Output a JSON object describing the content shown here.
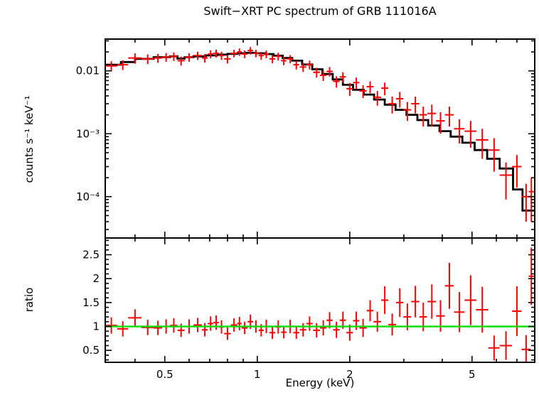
{
  "title": "Swift−XRT PC spectrum of GRB 111016A",
  "axes": {
    "top_ylabel": "counts s⁻¹ keV⁻¹",
    "bottom_ylabel": "ratio",
    "xlabel": "Energy (keV)"
  },
  "chart_data": {
    "type": "scatter",
    "title": "Swift−XRT PC spectrum of GRB 111016A",
    "xlabel": "Energy (keV)",
    "x_scale": "log",
    "x_range": [
      0.32,
      8.0
    ],
    "x_ticks": {
      "major": [
        {
          "v": 0.5,
          "label": "0.5"
        },
        {
          "v": 1,
          "label": "1"
        },
        {
          "v": 2,
          "label": "2"
        },
        {
          "v": 5,
          "label": "5"
        }
      ],
      "minor": [
        0.4,
        0.6,
        0.7,
        0.8,
        0.9,
        3,
        4,
        6,
        7
      ]
    },
    "colors": {
      "data": "#ff0000",
      "model": "#000000",
      "ratio_line": "#00dd00",
      "frame": "#000000"
    },
    "top": {
      "ylabel": "counts s⁻¹ keV⁻¹",
      "y_scale": "log",
      "y_range": [
        2.2e-05,
        0.032
      ],
      "y_ticks": {
        "major": [
          {
            "v": 0.01,
            "label": "0.01"
          },
          {
            "v": 0.001,
            "label": "10⁻³"
          },
          {
            "v": 0.0001,
            "label": "10⁻⁴"
          }
        ]
      },
      "points": [
        [
          0.335,
          0.015,
          0.012,
          0.0022
        ],
        [
          0.365,
          0.015,
          0.0125,
          0.0022
        ],
        [
          0.4,
          0.02,
          0.016,
          0.003
        ],
        [
          0.44,
          0.02,
          0.0155,
          0.0027
        ],
        [
          0.475,
          0.015,
          0.016,
          0.0026
        ],
        [
          0.505,
          0.015,
          0.0165,
          0.0026
        ],
        [
          0.535,
          0.015,
          0.017,
          0.0026
        ],
        [
          0.565,
          0.015,
          0.0145,
          0.0024
        ],
        [
          0.6,
          0.02,
          0.0165,
          0.0025
        ],
        [
          0.64,
          0.02,
          0.0175,
          0.0026
        ],
        [
          0.675,
          0.015,
          0.016,
          0.0025
        ],
        [
          0.705,
          0.015,
          0.0185,
          0.0027
        ],
        [
          0.735,
          0.015,
          0.019,
          0.0027
        ],
        [
          0.765,
          0.015,
          0.0175,
          0.0026
        ],
        [
          0.8,
          0.02,
          0.0155,
          0.0024
        ],
        [
          0.84,
          0.02,
          0.019,
          0.0026
        ],
        [
          0.875,
          0.015,
          0.02,
          0.0027
        ],
        [
          0.91,
          0.02,
          0.0185,
          0.0026
        ],
        [
          0.95,
          0.02,
          0.021,
          0.0028
        ],
        [
          0.99,
          0.02,
          0.019,
          0.0026
        ],
        [
          1.03,
          0.02,
          0.0175,
          0.0025
        ],
        [
          1.07,
          0.02,
          0.0185,
          0.0026
        ],
        [
          1.12,
          0.025,
          0.0155,
          0.0023
        ],
        [
          1.17,
          0.025,
          0.017,
          0.0024
        ],
        [
          1.22,
          0.025,
          0.0145,
          0.0022
        ],
        [
          1.28,
          0.03,
          0.0155,
          0.0023
        ],
        [
          1.34,
          0.03,
          0.0125,
          0.002
        ],
        [
          1.41,
          0.035,
          0.0115,
          0.0019
        ],
        [
          1.48,
          0.035,
          0.0125,
          0.002
        ],
        [
          1.56,
          0.04,
          0.0095,
          0.0017
        ],
        [
          1.64,
          0.04,
          0.0085,
          0.0016
        ],
        [
          1.72,
          0.04,
          0.0098,
          0.0017
        ],
        [
          1.81,
          0.045,
          0.0068,
          0.0014
        ],
        [
          1.9,
          0.045,
          0.008,
          0.0015
        ],
        [
          2.0,
          0.05,
          0.0052,
          0.0012
        ],
        [
          2.1,
          0.05,
          0.0065,
          0.0013
        ],
        [
          2.21,
          0.06,
          0.0048,
          0.0011
        ],
        [
          2.33,
          0.06,
          0.0056,
          0.0012
        ],
        [
          2.46,
          0.07,
          0.0038,
          0.001
        ],
        [
          2.6,
          0.07,
          0.0053,
          0.0012
        ],
        [
          2.75,
          0.08,
          0.003,
          0.0009
        ],
        [
          2.91,
          0.08,
          0.0036,
          0.001
        ],
        [
          3.08,
          0.09,
          0.0024,
          0.0008
        ],
        [
          3.27,
          0.1,
          0.003,
          0.0009
        ],
        [
          3.47,
          0.1,
          0.002,
          0.0007
        ],
        [
          3.7,
          0.12,
          0.0021,
          0.0008
        ],
        [
          3.95,
          0.13,
          0.0016,
          0.0006
        ],
        [
          4.22,
          0.14,
          0.002,
          0.0007
        ],
        [
          4.55,
          0.18,
          0.0012,
          0.0005
        ],
        [
          4.95,
          0.22,
          0.0011,
          0.0005
        ],
        [
          5.4,
          0.25,
          0.0008,
          0.0004
        ],
        [
          5.9,
          0.25,
          0.00055,
          0.0003
        ],
        [
          6.45,
          0.3,
          0.00022,
          0.00013
        ],
        [
          7.0,
          0.25,
          0.0003,
          0.00016
        ],
        [
          7.5,
          0.25,
          0.0001,
          6e-05
        ],
        [
          7.8,
          0.15,
          0.00012,
          8e-05
        ]
      ],
      "model_steps": [
        [
          0.32,
          0.36,
          0.0125
        ],
        [
          0.36,
          0.4,
          0.0138
        ],
        [
          0.4,
          0.46,
          0.0155
        ],
        [
          0.46,
          0.52,
          0.0165
        ],
        [
          0.52,
          0.55,
          0.017
        ],
        [
          0.55,
          0.58,
          0.0157
        ],
        [
          0.58,
          0.62,
          0.0165
        ],
        [
          0.62,
          0.68,
          0.017
        ],
        [
          0.68,
          0.74,
          0.0176
        ],
        [
          0.74,
          0.8,
          0.0181
        ],
        [
          0.8,
          0.86,
          0.0186
        ],
        [
          0.86,
          0.92,
          0.019
        ],
        [
          0.92,
          0.99,
          0.0193
        ],
        [
          0.99,
          1.06,
          0.019
        ],
        [
          1.06,
          1.13,
          0.0185
        ],
        [
          1.13,
          1.21,
          0.0174
        ],
        [
          1.21,
          1.3,
          0.016
        ],
        [
          1.3,
          1.4,
          0.0145
        ],
        [
          1.4,
          1.51,
          0.0126
        ],
        [
          1.51,
          1.63,
          0.0106
        ],
        [
          1.63,
          1.76,
          0.0089
        ],
        [
          1.76,
          1.9,
          0.0073
        ],
        [
          1.9,
          2.05,
          0.006
        ],
        [
          2.05,
          2.22,
          0.005
        ],
        [
          2.22,
          2.4,
          0.0042
        ],
        [
          2.4,
          2.6,
          0.0035
        ],
        [
          2.6,
          2.82,
          0.0029
        ],
        [
          2.82,
          3.06,
          0.0024
        ],
        [
          3.06,
          3.32,
          0.002
        ],
        [
          3.32,
          3.6,
          0.00165
        ],
        [
          3.6,
          3.92,
          0.00135
        ],
        [
          3.92,
          4.26,
          0.0011
        ],
        [
          4.26,
          4.65,
          0.0009
        ],
        [
          4.65,
          5.1,
          0.00072
        ],
        [
          5.1,
          5.6,
          0.00055
        ],
        [
          5.6,
          6.15,
          0.0004
        ],
        [
          6.15,
          6.8,
          0.00028
        ],
        [
          6.8,
          7.3,
          0.00013
        ],
        [
          7.3,
          8.0,
          6e-05
        ]
      ]
    },
    "bottom": {
      "ylabel": "ratio",
      "y_scale": "linear",
      "y_range": [
        0.25,
        2.85
      ],
      "reference_line": 1.0,
      "y_ticks": {
        "major": [
          {
            "v": 0.5,
            "label": "0.5"
          },
          {
            "v": 1,
            "label": "1"
          },
          {
            "v": 1.5,
            "label": "1.5"
          },
          {
            "v": 2,
            "label": "2"
          },
          {
            "v": 2.5,
            "label": "2.5"
          }
        ]
      },
      "points": [
        [
          0.335,
          0.015,
          1.02,
          0.17
        ],
        [
          0.365,
          0.015,
          0.95,
          0.16
        ],
        [
          0.4,
          0.02,
          1.18,
          0.18
        ],
        [
          0.44,
          0.02,
          0.98,
          0.16
        ],
        [
          0.475,
          0.015,
          0.97,
          0.15
        ],
        [
          0.505,
          0.015,
          1.0,
          0.15
        ],
        [
          0.535,
          0.015,
          1.02,
          0.15
        ],
        [
          0.565,
          0.015,
          0.92,
          0.14
        ],
        [
          0.6,
          0.02,
          1.0,
          0.15
        ],
        [
          0.64,
          0.02,
          1.03,
          0.15
        ],
        [
          0.675,
          0.015,
          0.93,
          0.14
        ],
        [
          0.705,
          0.015,
          1.06,
          0.15
        ],
        [
          0.735,
          0.015,
          1.08,
          0.15
        ],
        [
          0.765,
          0.015,
          0.99,
          0.14
        ],
        [
          0.8,
          0.02,
          0.85,
          0.13
        ],
        [
          0.84,
          0.02,
          1.03,
          0.14
        ],
        [
          0.875,
          0.015,
          1.06,
          0.14
        ],
        [
          0.91,
          0.02,
          0.97,
          0.13
        ],
        [
          0.95,
          0.02,
          1.1,
          0.15
        ],
        [
          0.99,
          0.02,
          1.0,
          0.13
        ],
        [
          1.03,
          0.02,
          0.92,
          0.13
        ],
        [
          1.07,
          0.02,
          1.0,
          0.14
        ],
        [
          1.12,
          0.025,
          0.87,
          0.13
        ],
        [
          1.17,
          0.025,
          0.99,
          0.14
        ],
        [
          1.22,
          0.025,
          0.88,
          0.13
        ],
        [
          1.28,
          0.03,
          1.0,
          0.14
        ],
        [
          1.34,
          0.03,
          0.87,
          0.13
        ],
        [
          1.41,
          0.035,
          0.93,
          0.14
        ],
        [
          1.48,
          0.035,
          1.06,
          0.15
        ],
        [
          1.56,
          0.04,
          0.92,
          0.15
        ],
        [
          1.64,
          0.04,
          0.97,
          0.16
        ],
        [
          1.72,
          0.04,
          1.13,
          0.17
        ],
        [
          1.81,
          0.045,
          0.93,
          0.17
        ],
        [
          1.9,
          0.045,
          1.13,
          0.18
        ],
        [
          2.0,
          0.05,
          0.87,
          0.17
        ],
        [
          2.1,
          0.05,
          1.12,
          0.19
        ],
        [
          2.21,
          0.06,
          0.97,
          0.19
        ],
        [
          2.33,
          0.06,
          1.33,
          0.22
        ],
        [
          2.46,
          0.07,
          1.1,
          0.21
        ],
        [
          2.6,
          0.07,
          1.55,
          0.29
        ],
        [
          2.75,
          0.08,
          1.04,
          0.23
        ],
        [
          2.91,
          0.08,
          1.5,
          0.3
        ],
        [
          3.08,
          0.09,
          1.2,
          0.28
        ],
        [
          3.27,
          0.1,
          1.52,
          0.33
        ],
        [
          3.47,
          0.1,
          1.2,
          0.3
        ],
        [
          3.7,
          0.12,
          1.52,
          0.36
        ],
        [
          3.95,
          0.13,
          1.22,
          0.33
        ],
        [
          4.22,
          0.14,
          1.85,
          0.48
        ],
        [
          4.55,
          0.18,
          1.3,
          0.42
        ],
        [
          4.95,
          0.22,
          1.55,
          0.52
        ],
        [
          5.4,
          0.25,
          1.35,
          0.48
        ],
        [
          5.9,
          0.25,
          0.55,
          0.26
        ],
        [
          6.45,
          0.3,
          0.6,
          0.3
        ],
        [
          7.0,
          0.25,
          1.32,
          0.52
        ],
        [
          7.5,
          0.25,
          0.52,
          0.3
        ],
        [
          7.8,
          0.15,
          2.05,
          0.6
        ]
      ]
    }
  }
}
